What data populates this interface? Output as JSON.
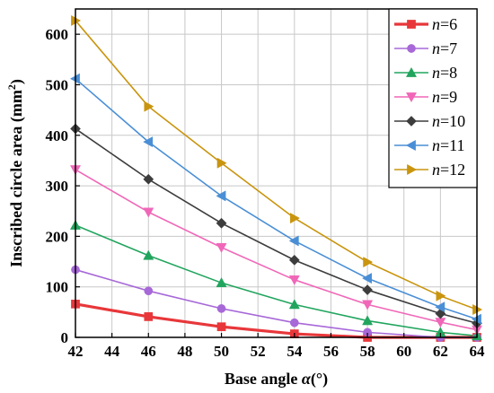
{
  "chart_data": {
    "type": "line",
    "xlabel_prefix": "Base angle ",
    "xlabel_symbol": "α",
    "xlabel_suffix": "(°)",
    "ylabel_main": "Inscribed circle area (mm",
    "ylabel_sup": "2",
    "ylabel_close": ")",
    "xlim": [
      42,
      64
    ],
    "ylim": [
      0,
      650
    ],
    "xticks": [
      42,
      44,
      46,
      48,
      50,
      52,
      54,
      56,
      58,
      60,
      62,
      64
    ],
    "yticks": [
      0,
      100,
      200,
      300,
      400,
      500,
      600
    ],
    "grid": true,
    "legend_position": "top-right",
    "x": [
      42,
      46,
      50,
      54,
      58,
      62,
      64
    ],
    "series": [
      {
        "name": "6",
        "legend_var": "n",
        "legend_eq": "=6",
        "color": "#e8373a",
        "marker": "square",
        "values": [
          66,
          41,
          21,
          7,
          0,
          0,
          0
        ]
      },
      {
        "name": "7",
        "legend_var": "n",
        "legend_eq": "=7",
        "color": "#a768d8",
        "marker": "circle",
        "values": [
          134,
          92,
          57,
          29,
          10,
          0,
          0
        ]
      },
      {
        "name": "8",
        "legend_var": "n",
        "legend_eq": "=8",
        "color": "#21a55e",
        "marker": "triangle-up",
        "values": [
          222,
          162,
          108,
          65,
          33,
          10,
          3
        ]
      },
      {
        "name": "9",
        "legend_var": "n",
        "legend_eq": "=9",
        "color": "#f067b8",
        "marker": "triangle-down",
        "values": [
          332,
          248,
          178,
          114,
          65,
          30,
          15
        ]
      },
      {
        "name": "10",
        "legend_var": "n",
        "legend_eq": "=10",
        "color": "#3d3d3d",
        "marker": "diamond",
        "values": [
          413,
          313,
          226,
          153,
          94,
          47,
          28
        ]
      },
      {
        "name": "11",
        "legend_var": "n",
        "legend_eq": "=11",
        "color": "#4a8fd6",
        "marker": "triangle-left",
        "values": [
          512,
          387,
          280,
          191,
          117,
          60,
          36
        ]
      },
      {
        "name": "12",
        "legend_var": "n",
        "legend_eq": "=12",
        "color": "#c9950e",
        "marker": "triangle-right",
        "values": [
          627,
          457,
          345,
          236,
          149,
          82,
          55
        ]
      }
    ]
  }
}
